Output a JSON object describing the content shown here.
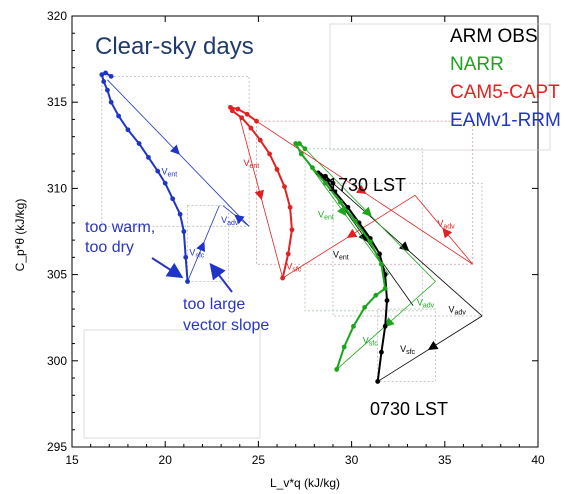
{
  "chart_data": {
    "type": "line",
    "title": "Clear-sky days",
    "xlabel": "L_v*q (kJ/kg)",
    "ylabel": "C_p*θ (kJ/kg)",
    "xlim": [
      15,
      40
    ],
    "ylim": [
      295,
      320
    ],
    "xticks": [
      15,
      20,
      25,
      30,
      35,
      40
    ],
    "yticks": [
      295,
      300,
      305,
      310,
      315,
      320
    ],
    "legend_position": "top-right",
    "series": [
      {
        "name": "ARM OBS",
        "color": "#000000",
        "x": [
          31.4,
          31.6,
          31.8,
          31.9,
          31.8,
          31.5,
          31.0,
          30.4,
          29.8,
          29.1,
          28.7,
          28.3,
          28.2,
          28.6,
          29.0
        ],
        "y": [
          298.8,
          300.5,
          302.0,
          303.5,
          305.0,
          306.2,
          307.1,
          308.0,
          308.9,
          309.8,
          310.4,
          310.8,
          310.9,
          310.7,
          310.3
        ]
      },
      {
        "name": "NARR",
        "color": "#1aa51a",
        "x": [
          29.2,
          29.6,
          30.1,
          30.7,
          31.3,
          31.8,
          31.6,
          31.0,
          30.2,
          29.4,
          28.6,
          27.9,
          27.3,
          27.0,
          27.2,
          27.5
        ],
        "y": [
          299.5,
          300.8,
          302.0,
          303.1,
          303.8,
          304.2,
          305.6,
          306.9,
          308.1,
          309.2,
          310.3,
          311.2,
          312.0,
          312.6,
          312.6,
          312.3
        ]
      },
      {
        "name": "CAM5-CAPT",
        "color": "#e22222",
        "x": [
          26.3,
          26.6,
          26.8,
          26.7,
          26.4,
          26.0,
          25.6,
          25.1,
          24.6,
          24.1,
          23.6,
          23.5,
          23.9,
          24.4,
          24.9
        ],
        "y": [
          304.8,
          306.2,
          307.6,
          308.9,
          310.1,
          311.1,
          312.0,
          312.8,
          313.5,
          314.1,
          314.5,
          314.7,
          314.6,
          314.3,
          313.9
        ]
      },
      {
        "name": "EAMv1-RRM",
        "color": "#1f35c8",
        "x": [
          21.2,
          21.1,
          21.0,
          20.8,
          20.4,
          20.0,
          19.6,
          19.1,
          18.6,
          18.0,
          17.5,
          17.1,
          16.9,
          16.7,
          16.6,
          16.8,
          17.1
        ],
        "y": [
          304.6,
          306.0,
          307.5,
          308.5,
          309.4,
          310.3,
          311.0,
          311.8,
          312.6,
          313.4,
          314.2,
          315.0,
          315.7,
          316.2,
          316.6,
          316.7,
          316.5
        ]
      }
    ],
    "vector_labels": {
      "adv": "V_adv",
      "ent": "V_ent",
      "sfc": "V_sfc"
    },
    "annotations": {
      "evening": "1730 LST",
      "morning": "0730 LST",
      "too_warm_line1": "too warm,",
      "too_warm_line2": "too dry",
      "too_large_line1": "too large",
      "too_large_line2": "vector slope"
    }
  }
}
